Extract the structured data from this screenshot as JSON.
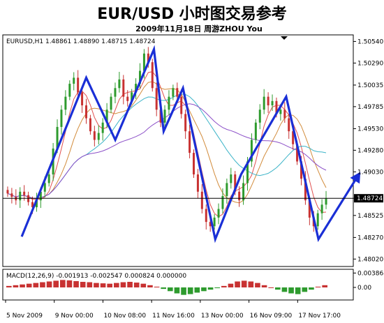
{
  "header": {
    "title": "EUR/USD 小时图交易参考",
    "subtitle": "2009年11月18日   周游ZHOU  You"
  },
  "chart_data": [
    {
      "type": "candlestick",
      "title": "EURUSD,H1  1.48861 1.48890 1.48715 1.48724",
      "ylim": [
        1.4795,
        1.506
      ],
      "y_ticks": [
        "1.50540",
        "1.50290",
        "1.50035",
        "1.49785",
        "1.49530",
        "1.49280",
        "1.49030",
        "1.48724",
        "1.48525",
        "1.48270",
        "1.48020"
      ],
      "current_price": 1.48724,
      "current_price_label": "1.48724",
      "x_ticks": [
        "5 Nov 2009",
        "9 Nov 00:00",
        "10 Nov 08:00",
        "11 Nov 16:00",
        "13 Nov 00:00",
        "16 Nov 09:00",
        "17 Nov 17:00"
      ],
      "grid": false,
      "overlays": [
        "moving averages (multiple)"
      ],
      "zigzag_wave": [
        [
          0.05,
          1.4828
        ],
        [
          0.25,
          1.5012
        ],
        [
          0.34,
          1.494
        ],
        [
          0.46,
          1.5045
        ],
        [
          0.49,
          1.495
        ],
        [
          0.55,
          1.5
        ],
        [
          0.65,
          1.4825
        ],
        [
          0.73,
          1.49
        ],
        [
          0.87,
          1.499
        ],
        [
          0.97,
          1.4825
        ],
        [
          1.1,
          1.4903
        ]
      ],
      "candle_closes": [
        1.4878,
        1.4874,
        1.487,
        1.488,
        1.4876,
        1.4868,
        1.4862,
        1.487,
        1.488,
        1.489,
        1.49,
        1.493,
        1.4955,
        1.4975,
        1.499,
        1.5005,
        1.5012,
        1.4995,
        1.498,
        1.4965,
        1.495,
        1.494,
        1.4948,
        1.496,
        1.4975,
        1.499,
        1.5,
        1.501,
        1.499,
        1.4985,
        1.4995,
        1.5005,
        1.502,
        1.504,
        1.503,
        1.5,
        1.4975,
        1.496,
        1.4975,
        1.499,
        1.5,
        1.499,
        1.497,
        1.495,
        1.4925,
        1.49,
        1.488,
        1.486,
        1.4845,
        1.484,
        1.485,
        1.486,
        1.4875,
        1.489,
        1.49,
        1.488,
        1.487,
        1.489,
        1.4915,
        1.494,
        1.496,
        1.4975,
        1.499,
        1.498,
        1.4985,
        1.497,
        1.4975,
        1.4965,
        1.495,
        1.4935,
        1.4915,
        1.4895,
        1.487,
        1.485,
        1.484,
        1.4855,
        1.4865,
        1.4872
      ]
    },
    {
      "type": "histogram",
      "title": "MACD(12,26,9) -0.001913 -0.002547 0.000824 0.000000",
      "ylim": [
        -0.003,
        0.0045
      ],
      "y_ticks": [
        "0.003868",
        "0.00"
      ],
      "series": [
        {
          "values": [
            0.0004,
            0.0006,
            0.0008,
            0.001,
            0.0012,
            0.0014,
            0.0016,
            0.0018,
            0.002,
            0.0019,
            0.0017,
            0.0015,
            0.0014,
            0.0012,
            0.0011,
            0.001,
            0.0012,
            0.0014,
            0.0015,
            0.0013,
            0.001,
            0.0006,
            0.0002,
            -0.0004,
            -0.001,
            -0.0016,
            -0.002,
            -0.0018,
            -0.0014,
            -0.001,
            -0.0006,
            -0.0002,
            0.0004,
            0.001,
            0.0016,
            0.0018,
            0.0016,
            0.0012,
            0.0006,
            0.0,
            -0.0006,
            -0.0012,
            -0.0016,
            -0.0018,
            -0.0012,
            -0.0006,
            0.0002,
            0.0006
          ]
        }
      ]
    }
  ]
}
